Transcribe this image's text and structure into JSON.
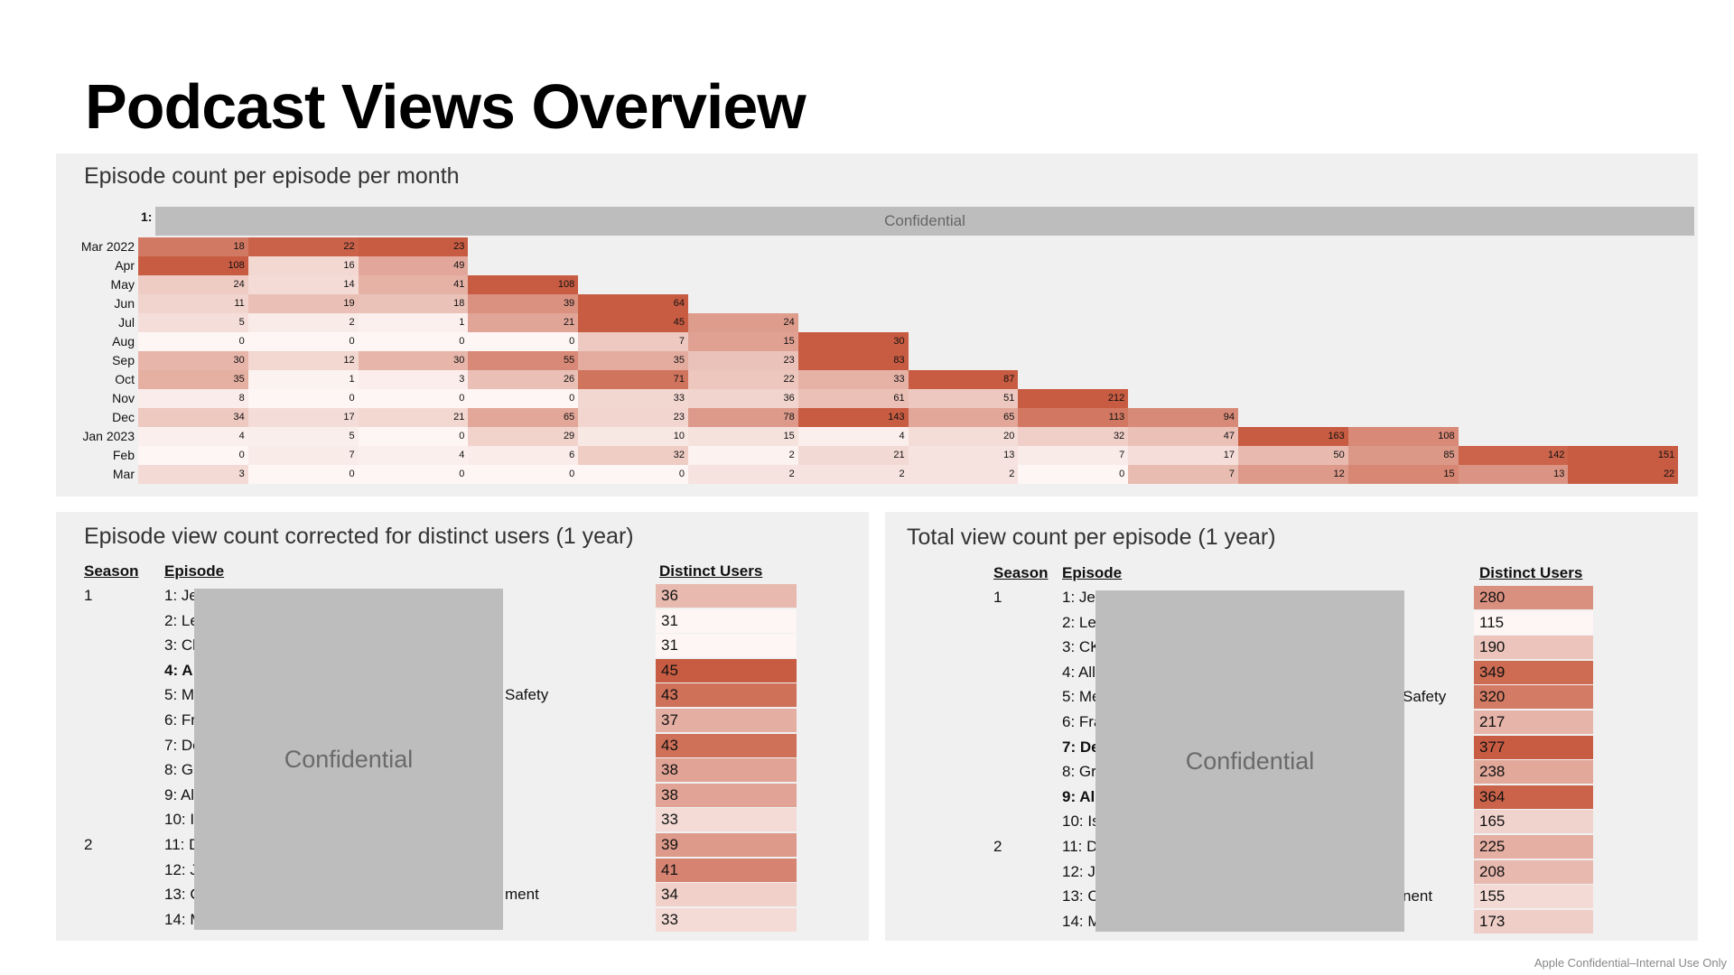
{
  "title": "Podcast Views Overview",
  "accent_color": "#c85c42",
  "heatmap_panel": {
    "title": "Episode count per episode per month",
    "corner_label": "1:",
    "confidential_label": "Confidential",
    "months": [
      "Mar 2022",
      "Apr",
      "May",
      "Jun",
      "Jul",
      "Aug",
      "Sep",
      "Oct",
      "Nov",
      "Dec",
      "Jan 2023",
      "Feb",
      "Mar"
    ],
    "rows": [
      [
        18,
        22,
        23
      ],
      [
        108,
        16,
        49
      ],
      [
        24,
        14,
        41,
        108
      ],
      [
        11,
        19,
        18,
        39,
        64
      ],
      [
        5,
        2,
        1,
        21,
        45,
        24
      ],
      [
        0,
        0,
        0,
        0,
        7,
        15,
        30
      ],
      [
        30,
        12,
        30,
        55,
        35,
        23,
        83
      ],
      [
        35,
        1,
        3,
        26,
        71,
        22,
        33,
        87
      ],
      [
        8,
        0,
        0,
        0,
        33,
        36,
        61,
        51,
        212
      ],
      [
        34,
        17,
        21,
        65,
        23,
        78,
        143,
        65,
        113,
        94
      ],
      [
        4,
        5,
        0,
        29,
        10,
        15,
        4,
        20,
        32,
        47,
        163,
        108
      ],
      [
        0,
        7,
        4,
        6,
        32,
        2,
        21,
        13,
        7,
        17,
        50,
        85,
        142,
        151
      ],
      [
        3,
        0,
        0,
        0,
        0,
        2,
        2,
        2,
        0,
        7,
        12,
        15,
        13,
        22
      ]
    ]
  },
  "distinct_panel": {
    "title": "Episode view count corrected for distinct users (1 year)",
    "headers": {
      "season": "Season",
      "episode": "Episode",
      "distinct_users": "Distinct Users"
    },
    "confidential_label": "Confidential",
    "rows": [
      {
        "season": "1",
        "episode": "1: Je",
        "tail": "",
        "value": 36,
        "bold": false
      },
      {
        "season": "",
        "episode": "2: Le",
        "tail": "",
        "value": 31,
        "bold": false
      },
      {
        "season": "",
        "episode": "3: Cl",
        "tail": "",
        "value": 31,
        "bold": false
      },
      {
        "season": "",
        "episode": "4: A",
        "tail": "",
        "value": 45,
        "bold": true
      },
      {
        "season": "",
        "episode": "5: M",
        "tail": "Safety",
        "value": 43,
        "bold": false
      },
      {
        "season": "",
        "episode": "6: Fr",
        "tail": "",
        "value": 37,
        "bold": false
      },
      {
        "season": "",
        "episode": "7: De",
        "tail": "",
        "value": 43,
        "bold": false
      },
      {
        "season": "",
        "episode": "8: Gr",
        "tail": "",
        "value": 38,
        "bold": false
      },
      {
        "season": "",
        "episode": "9: Al",
        "tail": "",
        "value": 38,
        "bold": false
      },
      {
        "season": "",
        "episode": "10: I:",
        "tail": "",
        "value": 33,
        "bold": false
      },
      {
        "season": "2",
        "episode": "11: D",
        "tail": "",
        "value": 39,
        "bold": false
      },
      {
        "season": "",
        "episode": "12: J",
        "tail": "",
        "value": 41,
        "bold": false
      },
      {
        "season": "",
        "episode": "13: C",
        "tail": "ment",
        "value": 34,
        "bold": false
      },
      {
        "season": "",
        "episode": "14: M",
        "tail": "",
        "value": 33,
        "bold": false
      }
    ]
  },
  "total_panel": {
    "title": "Total view count per episode (1 year)",
    "headers": {
      "season": "Season",
      "episode": "Episode",
      "distinct_users": "Distinct Users"
    },
    "confidential_label": "Confidential",
    "rows": [
      {
        "season": "1",
        "episode": "1: Jef",
        "tail": "",
        "value": 280,
        "bold": false
      },
      {
        "season": "",
        "episode": "2: Les",
        "tail": "",
        "value": 115,
        "bold": false
      },
      {
        "season": "",
        "episode": "3: CK",
        "tail": "",
        "value": 190,
        "bold": false
      },
      {
        "season": "",
        "episode": "4: All",
        "tail": "",
        "value": 349,
        "bold": false
      },
      {
        "season": "",
        "episode": "5: Me",
        "tail": "Safety",
        "value": 320,
        "bold": false
      },
      {
        "season": "",
        "episode": "6: Fra",
        "tail": "",
        "value": 217,
        "bold": false
      },
      {
        "season": "",
        "episode": "7: De",
        "tail": "",
        "value": 377,
        "bold": true
      },
      {
        "season": "",
        "episode": "8: Gre",
        "tail": "",
        "value": 238,
        "bold": false
      },
      {
        "season": "",
        "episode": "9: Al",
        "tail": "",
        "value": 364,
        "bold": true
      },
      {
        "season": "",
        "episode": "10: Is",
        "tail": "",
        "value": 165,
        "bold": false
      },
      {
        "season": "2",
        "episode": "11: Da",
        "tail": "",
        "value": 225,
        "bold": false
      },
      {
        "season": "",
        "episode": "12: Ji",
        "tail": "",
        "value": 208,
        "bold": false
      },
      {
        "season": "",
        "episode": "13: C",
        "tail": "nent",
        "value": 155,
        "bold": false
      },
      {
        "season": "",
        "episode": "14: M",
        "tail": "",
        "value": 173,
        "bold": false
      }
    ]
  },
  "footer": "Apple Confidential–Internal Use Only"
}
